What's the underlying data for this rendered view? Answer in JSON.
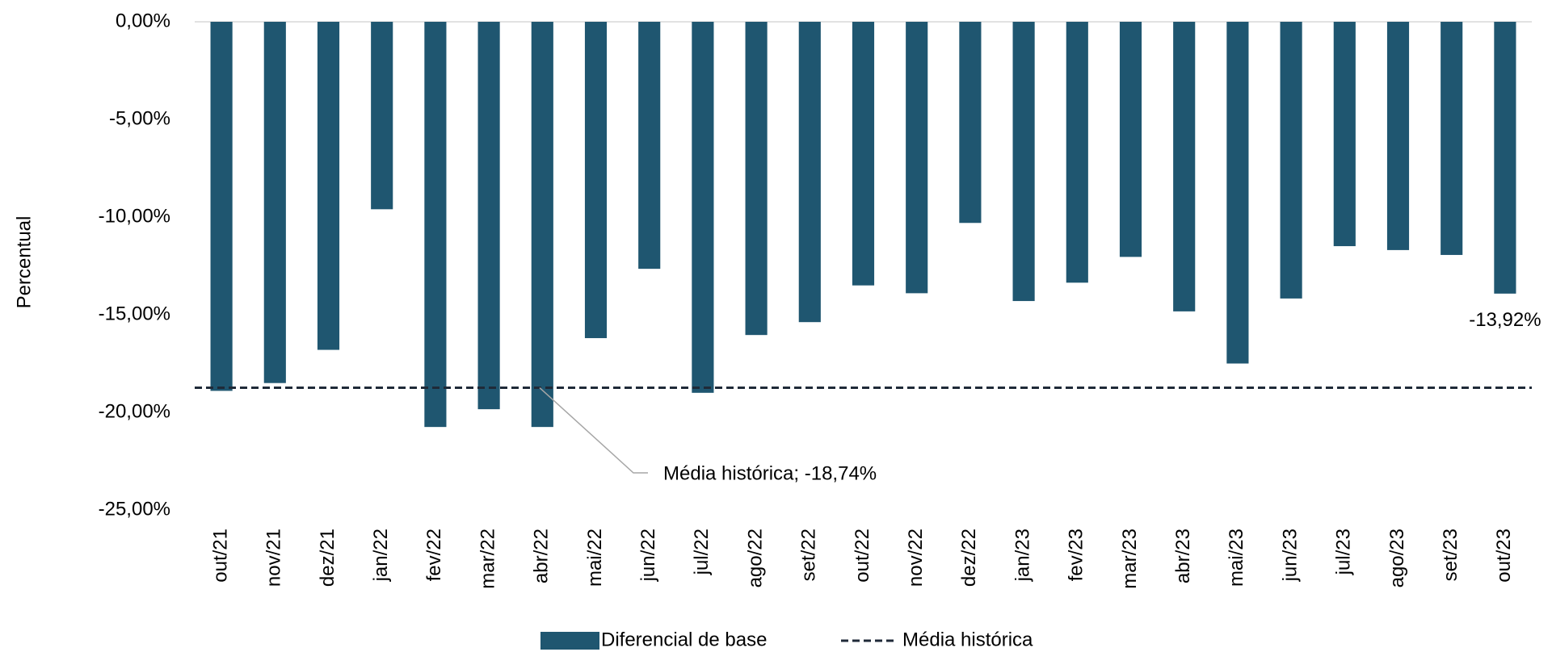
{
  "chart_data": {
    "type": "bar",
    "y_label": "Percentual",
    "categories": [
      "out/21",
      "nov/21",
      "dez/21",
      "jan/22",
      "fev/22",
      "mar/22",
      "abr/22",
      "mai/22",
      "jun/22",
      "jul/22",
      "ago/22",
      "set/22",
      "out/22",
      "nov/22",
      "dez/22",
      "jan/23",
      "fev/23",
      "mar/23",
      "abr/23",
      "mai/23",
      "jun/23",
      "jul/23",
      "ago/23",
      "set/23",
      "out/23"
    ],
    "series": [
      {
        "name": "Diferencial de base",
        "color": "#1f5670",
        "type": "bar",
        "values": [
          -18.9,
          -18.5,
          -16.8,
          -9.6,
          -20.75,
          -19.84,
          -20.75,
          -16.2,
          -12.65,
          -19.0,
          -16.04,
          -15.38,
          -13.5,
          -13.9,
          -10.3,
          -14.3,
          -13.36,
          -12.04,
          -14.83,
          -17.5,
          -14.17,
          -11.49,
          -11.69,
          -11.94,
          -13.92
        ],
        "value_labels": [
          null,
          null,
          null,
          null,
          null,
          null,
          null,
          null,
          null,
          null,
          null,
          null,
          null,
          null,
          null,
          null,
          null,
          null,
          null,
          null,
          null,
          null,
          null,
          null,
          "-13,92%"
        ]
      },
      {
        "name": "Média histórica",
        "color": "#1f2a38",
        "type": "hline",
        "value": -18.74,
        "annotation": "Média histórica; -18,74%"
      }
    ],
    "ylim": [
      -25,
      0
    ],
    "yticks": [
      {
        "value": 0,
        "label": "0,00%"
      },
      {
        "value": -5,
        "label": "-5,00%"
      },
      {
        "value": -10,
        "label": "-10,00%"
      },
      {
        "value": -15,
        "label": "-15,00%"
      },
      {
        "value": -20,
        "label": "-20,00%"
      },
      {
        "value": -25,
        "label": "-25,00%"
      }
    ],
    "grid": false
  }
}
